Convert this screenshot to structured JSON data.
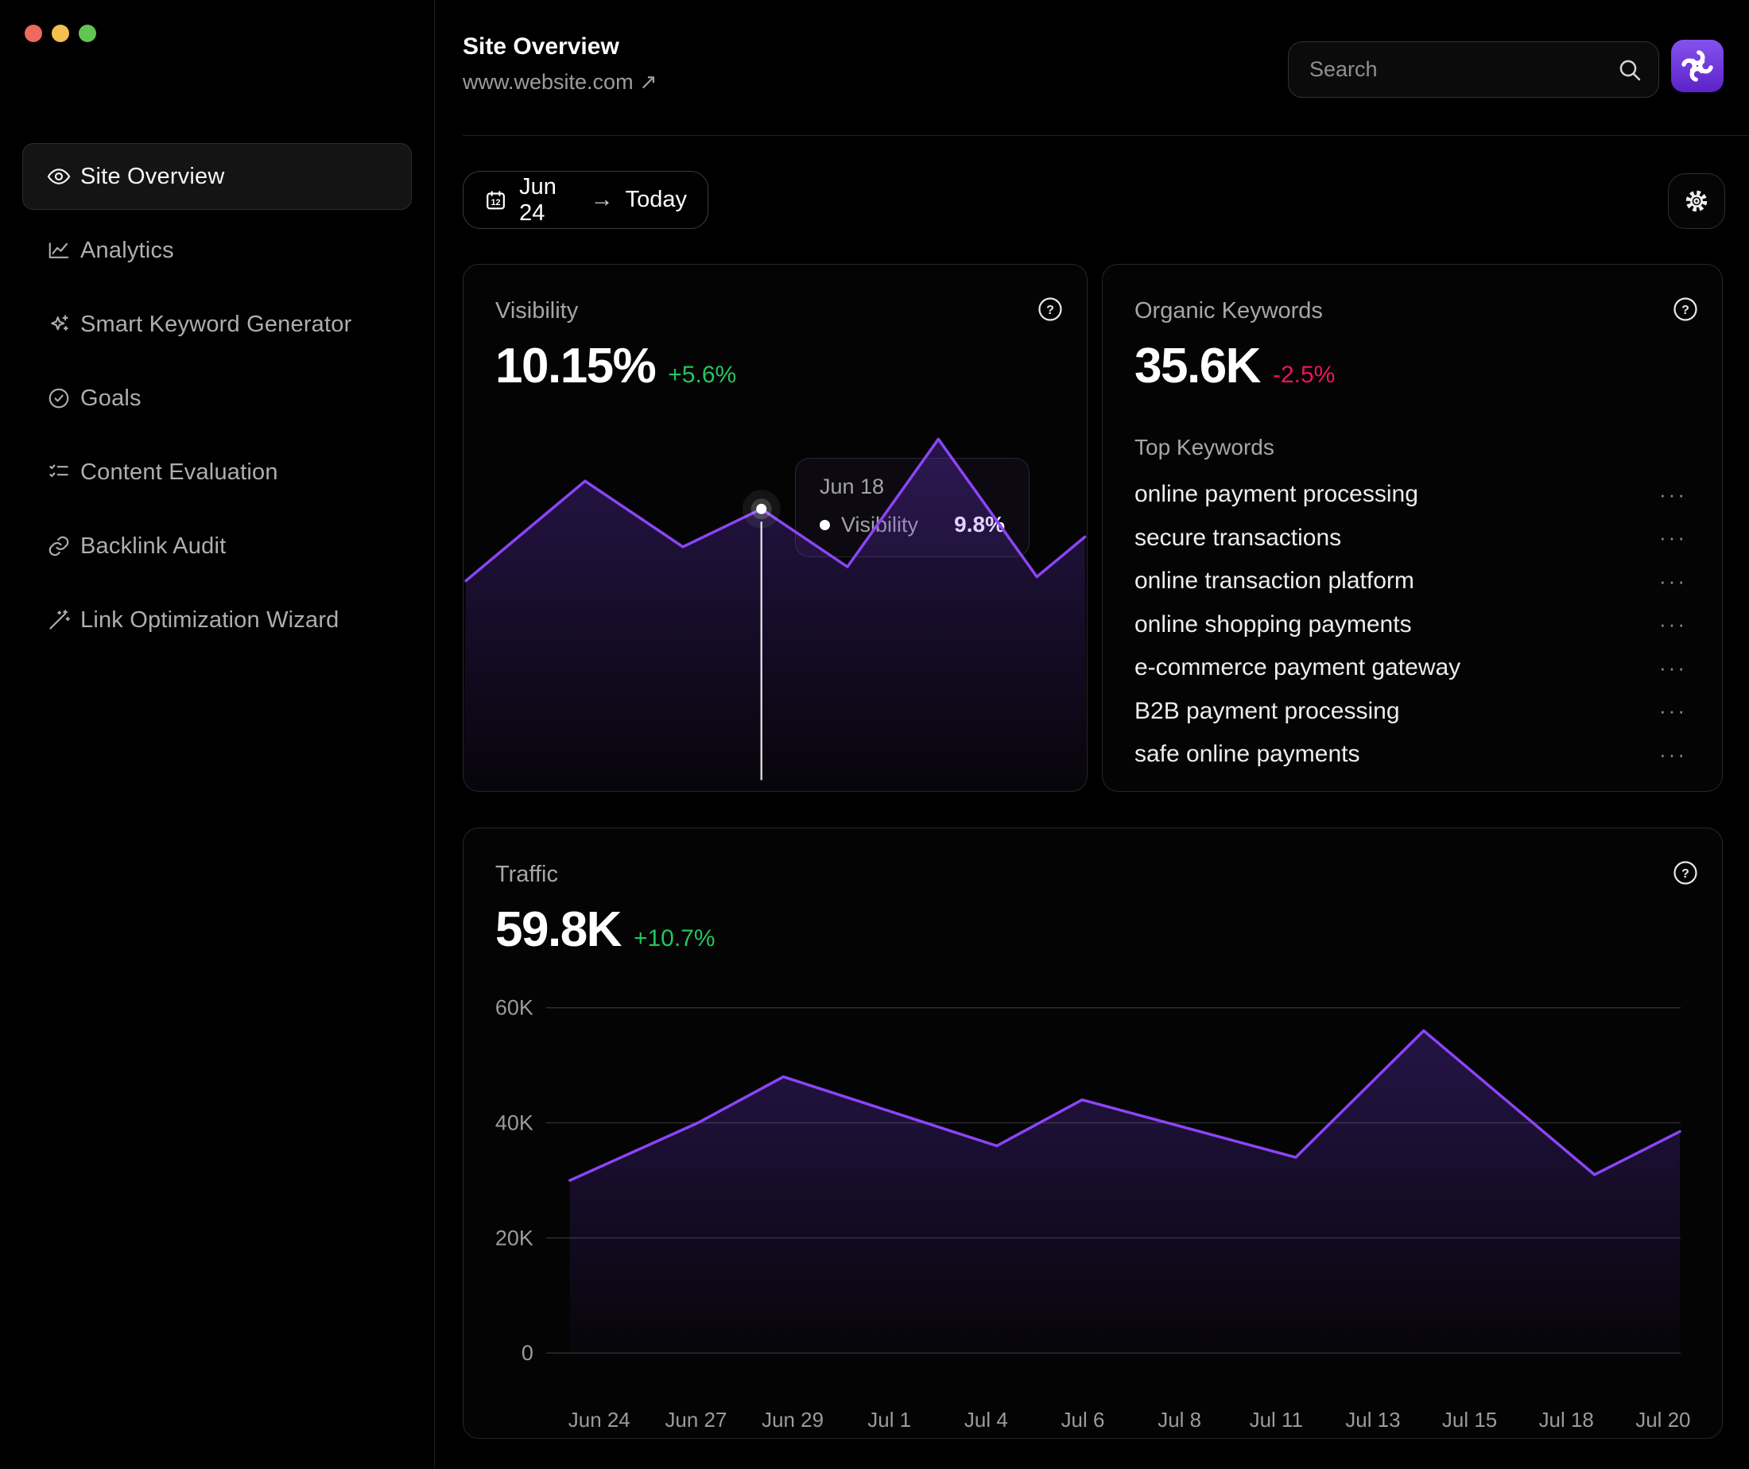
{
  "window": {
    "traffic_lights": [
      {
        "name": "close",
        "color": "#ed6a5e"
      },
      {
        "name": "minimize",
        "color": "#f4bf4f"
      },
      {
        "name": "zoom",
        "color": "#61c454"
      }
    ]
  },
  "sidebar": {
    "items": [
      {
        "label": "Site Overview",
        "icon": "eye-icon",
        "active": true
      },
      {
        "label": "Analytics",
        "icon": "line-chart-icon",
        "active": false
      },
      {
        "label": "Smart Keyword Generator",
        "icon": "sparkles-icon",
        "active": false
      },
      {
        "label": "Goals",
        "icon": "goal-icon",
        "active": false
      },
      {
        "label": "Content Evaluation",
        "icon": "checklist-icon",
        "active": false
      },
      {
        "label": "Backlink Audit",
        "icon": "link-icon",
        "active": false
      },
      {
        "label": "Link Optimization Wizard",
        "icon": "wand-icon",
        "active": false
      }
    ]
  },
  "header": {
    "title": "Site Overview",
    "url": "www.website.com",
    "url_arrow": "↗",
    "search_placeholder": "Search"
  },
  "toolbar": {
    "date_start": "Jun 24",
    "date_arrow": "→",
    "date_end": "Today",
    "calendar_day": "12"
  },
  "cards": {
    "visibility": {
      "title": "Visibility",
      "value": "10.15%",
      "delta": "+5.6%",
      "tooltip": {
        "date": "Jun 18",
        "series": "Visibility",
        "value": "9.8%"
      }
    },
    "organic": {
      "title": "Organic Keywords",
      "value": "35.6K",
      "delta": "-2.5%",
      "list_title": "Top Keywords",
      "menu_glyph": "···",
      "keywords": [
        "online payment processing",
        "secure transactions",
        "online transaction platform",
        "online shopping payments",
        "e-commerce payment gateway",
        "B2B payment processing",
        "safe online payments"
      ]
    },
    "traffic": {
      "title": "Traffic",
      "value": "59.8K",
      "delta": "+10.7%"
    }
  },
  "colors": {
    "accent": "#8b45f7",
    "positive": "#22c55e",
    "negative": "#ec1360",
    "grid": "#2d2d2d",
    "tick_text": "#9b9b9b"
  },
  "chart_data": [
    {
      "id": "visibility",
      "type": "area",
      "title": "Visibility",
      "unit": "%",
      "axes_hidden": true,
      "legend": "none",
      "line_color": "#8b45f7",
      "points": [
        {
          "x_frac": 0.004,
          "value": 8.0
        },
        {
          "x_frac": 0.195,
          "value": 10.5
        },
        {
          "x_frac": 0.352,
          "value": 8.85
        },
        {
          "x_frac": 0.478,
          "value": 9.8,
          "marker": true,
          "label": "Jun 18"
        },
        {
          "x_frac": 0.616,
          "value": 8.35
        },
        {
          "x_frac": 0.762,
          "value": 11.55
        },
        {
          "x_frac": 0.92,
          "value": 8.1
        },
        {
          "x_frac": 0.997,
          "value": 9.1
        }
      ]
    },
    {
      "id": "traffic",
      "type": "area",
      "title": "Traffic",
      "grid": true,
      "legend": "none",
      "line_color": "#8b45f7",
      "ylim": [
        0,
        60000
      ],
      "y_tick_labels": [
        "0",
        "20K",
        "40K",
        "60K"
      ],
      "x_tick_labels": [
        "Jun 24",
        "Jun 27",
        "Jun 29",
        "Jul 1",
        "Jul 4",
        "Jul 6",
        "Jul 8",
        "Jul 11",
        "Jul 13",
        "Jul 15",
        "Jul 18",
        "Jul 20"
      ],
      "series": [
        {
          "name": "Traffic",
          "day_span": 26,
          "points": [
            {
              "day": 0,
              "date": "Jun 24",
              "value": 30000
            },
            {
              "day": 3,
              "date": "Jun 27",
              "value": 40000
            },
            {
              "day": 5,
              "date": "Jun 29",
              "value": 48000
            },
            {
              "day": 10,
              "date": "Jul 4",
              "value": 36000
            },
            {
              "day": 12,
              "date": "Jul 6",
              "value": 44000
            },
            {
              "day": 17,
              "date": "Jul 11",
              "value": 34000
            },
            {
              "day": 20,
              "date": "Jul 14",
              "value": 56000
            },
            {
              "day": 24,
              "date": "Jul 18",
              "value": 31000
            },
            {
              "day": 26,
              "date": "Jul 20",
              "value": 38500
            }
          ]
        }
      ]
    }
  ]
}
